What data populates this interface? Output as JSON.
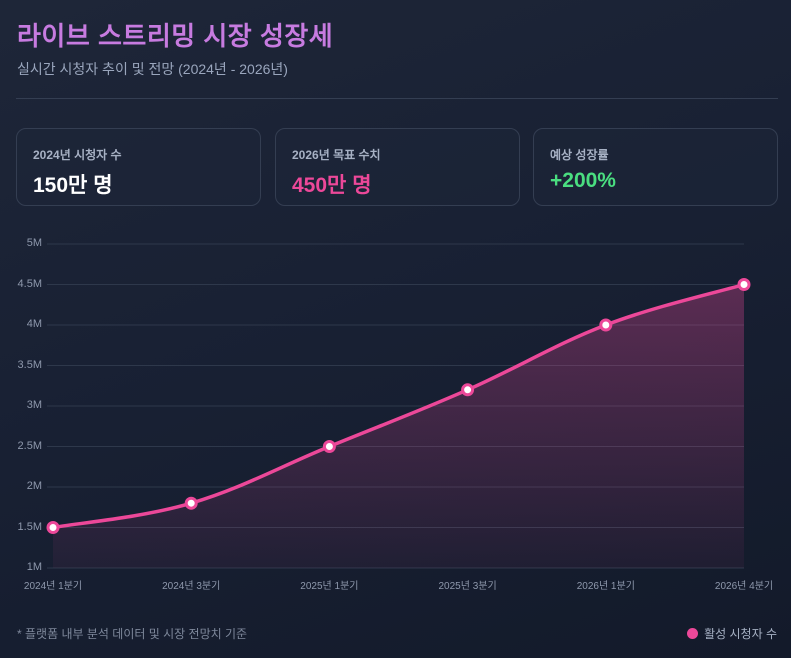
{
  "header": {
    "title": "라이브 스트리밍 시장 성장세",
    "subtitle": "실시간 시청자 추이 및 전망 (2024년 - 2026년)"
  },
  "cards": [
    {
      "label": "2024년 시청자 수",
      "value": "150만 명",
      "color": "#ffffff"
    },
    {
      "label": "2026년 목표 수치",
      "value": "450만 명",
      "color": "#ec4899"
    },
    {
      "label": "예상 성장률",
      "value": "+200%",
      "color": "#4ade80"
    }
  ],
  "footer": {
    "note": "* 플랫폼 내부 분석 데이터 및 시장 전망치 기준",
    "legend_label": "활성 시청자 수"
  },
  "colors": {
    "line": "#ec4899",
    "accent_title": "#c77be0",
    "growth": "#4ade80"
  },
  "chart_data": {
    "type": "area",
    "title": "라이브 스트리밍 시장 성장세",
    "categories": [
      "2024년 1분기",
      "2024년 3분기",
      "2025년 1분기",
      "2025년 3분기",
      "2026년 1분기",
      "2026년 4분기"
    ],
    "series": [
      {
        "name": "활성 시청자 수",
        "values": [
          1500000,
          1800000,
          2500000,
          3200000,
          4000000,
          4500000
        ]
      }
    ],
    "ylim": [
      1000000,
      5000000
    ],
    "yticks": [
      "1M",
      "1.5M",
      "2M",
      "2.5M",
      "3M",
      "3.5M",
      "4M",
      "4.5M",
      "5M"
    ],
    "xlabel": "",
    "ylabel": "",
    "grid": true,
    "legend_position": "bottom-right"
  }
}
